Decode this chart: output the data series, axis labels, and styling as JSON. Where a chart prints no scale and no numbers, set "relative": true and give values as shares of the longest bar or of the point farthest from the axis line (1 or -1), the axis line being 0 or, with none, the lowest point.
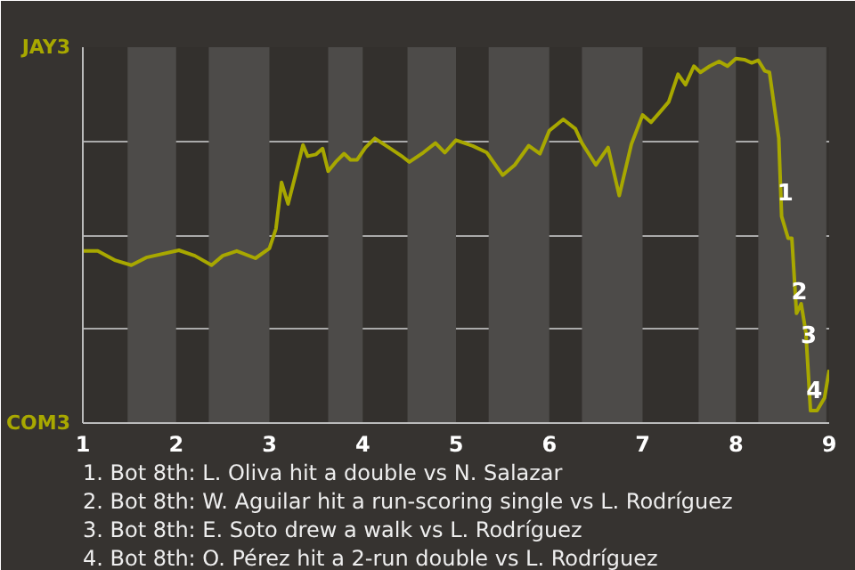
{
  "chart_data": {
    "type": "line",
    "relative": true,
    "x": [
      1,
      1.16,
      1.35,
      1.52,
      1.68,
      2.03,
      2.2,
      2.38,
      2.5,
      2.65,
      2.85,
      3,
      3.07,
      3.13,
      3.2,
      3.29,
      3.36,
      3.41,
      3.5,
      3.57,
      3.63,
      3.71,
      3.8,
      3.87,
      3.94,
      4.03,
      4.13,
      4.28,
      4.43,
      4.5,
      4.65,
      4.78,
      4.88,
      5,
      5.18,
      5.33,
      5.5,
      5.63,
      5.78,
      5.9,
      6,
      6.15,
      6.28,
      6.35,
      6.5,
      6.63,
      6.75,
      6.88,
      7,
      7.09,
      7.18,
      7.28,
      7.38,
      7.46,
      7.55,
      7.62,
      7.72,
      7.82,
      7.91,
      8,
      8.09,
      8.17,
      8.24,
      8.31,
      8.36,
      8.46,
      8.49,
      8.56,
      8.6,
      8.65,
      8.7,
      8.75,
      8.8,
      8.87,
      8.95,
      9
    ],
    "series": [
      {
        "color": "#a8a800",
        "values": [
          0.472,
          0.472,
          0.446,
          0.433,
          0.454,
          0.474,
          0.459,
          0.433,
          0.459,
          0.472,
          0.452,
          0.479,
          0.533,
          0.66,
          0.601,
          0.691,
          0.763,
          0.732,
          0.737,
          0.753,
          0.691,
          0.716,
          0.739,
          0.722,
          0.722,
          0.756,
          0.781,
          0.756,
          0.73,
          0.716,
          0.742,
          0.768,
          0.742,
          0.776,
          0.76,
          0.742,
          0.68,
          0.708,
          0.761,
          0.739,
          0.802,
          0.833,
          0.807,
          0.768,
          0.708,
          0.756,
          0.624,
          0.765,
          0.845,
          0.825,
          0.851,
          0.881,
          0.957,
          0.928,
          0.979,
          0.962,
          0.979,
          0.992,
          0.979,
          1,
          0.997,
          0.988,
          0.995,
          0.966,
          0.962,
          0.781,
          0.567,
          0.507,
          0.507,
          0.301,
          0.327,
          0.249,
          0.034,
          0.034,
          0.069,
          0.146
        ]
      }
    ],
    "xlim": [
      1,
      9
    ],
    "xticks": [
      1,
      2,
      3,
      4,
      5,
      6,
      7,
      8,
      9
    ],
    "grid": "y",
    "marker": "none",
    "line_style": "solid",
    "bands": [
      {
        "axis": "x",
        "from": 1.48,
        "to": 2,
        "color": "#4d4b49"
      },
      {
        "axis": "x",
        "from": 2.35,
        "to": 3,
        "color": "#4d4b49"
      },
      {
        "axis": "x",
        "from": 3.63,
        "to": 4,
        "color": "#4d4b49"
      },
      {
        "axis": "x",
        "from": 4.48,
        "to": 5,
        "color": "#4d4b49"
      },
      {
        "axis": "x",
        "from": 5.35,
        "to": 6,
        "color": "#4d4b49"
      },
      {
        "axis": "x",
        "from": 6.35,
        "to": 7,
        "color": "#4d4b49"
      },
      {
        "axis": "x",
        "from": 7.6,
        "to": 8,
        "color": "#4d4b49"
      },
      {
        "axis": "x",
        "from": 8.24,
        "to": 8.97,
        "color": "#4d4b49"
      }
    ],
    "annotations": [
      "JAY3",
      "COM3",
      {
        "text": "1",
        "x": 8.53,
        "y": 0.636
      },
      {
        "text": "2",
        "x": 8.68,
        "y": 0.364
      },
      {
        "text": "3",
        "x": 8.78,
        "y": 0.244
      },
      {
        "text": "4",
        "x": 8.84,
        "y": 0.093
      },
      "1. Bot 8th: L. Oliva hit a double vs N. Salazar",
      "2. Bot 8th: W. Aguilar hit a run-scoring single vs L. Rodríguez",
      "3. Bot 8th: E. Soto drew a walk vs L. Rodríguez",
      "4. Bot 8th: O. Pérez hit a 2-run double vs L. Rodríguez"
    ]
  }
}
